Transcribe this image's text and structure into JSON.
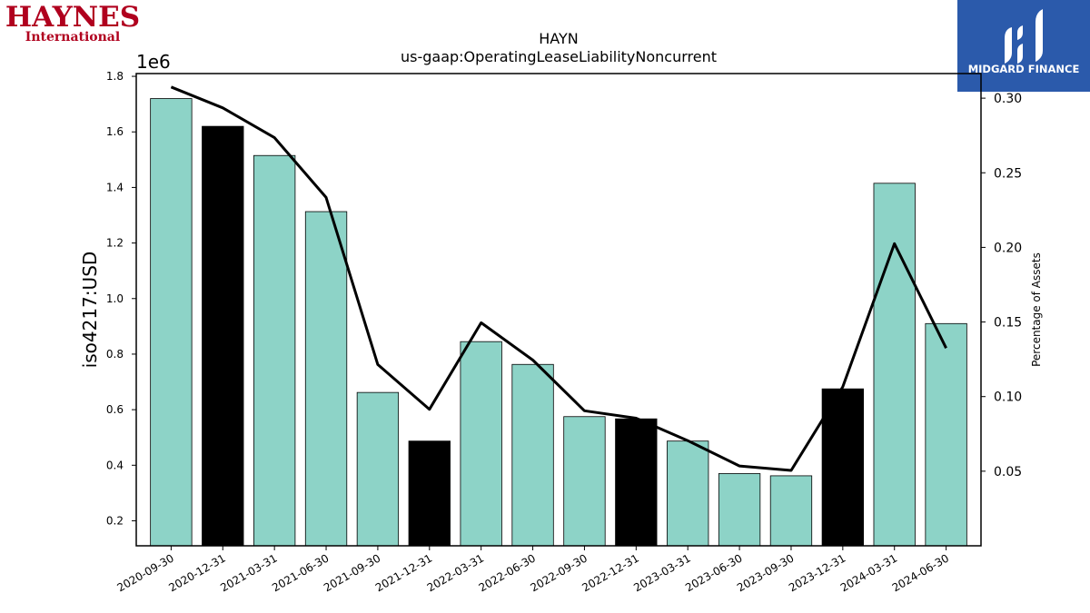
{
  "branding": {
    "left_logo_line1": "HAYNES",
    "left_logo_line2": "International",
    "left_logo_color": "#b0001e",
    "right_logo_text": "MIDGARD FINANCE",
    "right_logo_bg": "#2b5aab"
  },
  "chart_data": {
    "type": "bar",
    "title": "HAYN",
    "subtitle": "us-gaap:OperatingLeaseLiabilityNoncurrent",
    "ylabel": "iso4217:USD",
    "y_offset_text": "1e6",
    "y2label": "Percentage of Assets",
    "categories": [
      "2020-09-30",
      "2020-12-31",
      "2021-03-31",
      "2021-06-30",
      "2021-09-30",
      "2021-12-31",
      "2022-03-31",
      "2022-06-30",
      "2022-09-30",
      "2022-12-31",
      "2023-03-31",
      "2023-06-30",
      "2023-09-30",
      "2023-12-31",
      "2024-03-31",
      "2024-06-30"
    ],
    "values": [
      1.72,
      1.62,
      1.515,
      1.313,
      0.662,
      0.487,
      0.845,
      0.763,
      0.575,
      0.567,
      0.487,
      0.37,
      0.362,
      0.675,
      1.415,
      0.91
    ],
    "bar_colors": [
      "#8dd3c7",
      "#000000",
      "#8dd3c7",
      "#8dd3c7",
      "#8dd3c7",
      "#000000",
      "#8dd3c7",
      "#8dd3c7",
      "#8dd3c7",
      "#000000",
      "#8dd3c7",
      "#8dd3c7",
      "#8dd3c7",
      "#000000",
      "#8dd3c7",
      "#8dd3c7"
    ],
    "ylim": [
      0.11,
      1.81
    ],
    "yticks": [
      0.2,
      0.4,
      0.6,
      0.8,
      1.0,
      1.2,
      1.4,
      1.6,
      1.8
    ],
    "ytick_labels": [
      "0.2",
      "0.4",
      "0.6",
      "0.8",
      "1.0",
      "1.2",
      "1.4",
      "1.6",
      "1.8"
    ],
    "line_series": {
      "values": [
        0.3075,
        0.2935,
        0.2735,
        0.2335,
        0.1215,
        0.0915,
        0.1495,
        0.1245,
        0.0905,
        0.0855,
        0.0705,
        0.0535,
        0.0505,
        0.1065,
        0.2025,
        0.1325
      ],
      "color": "#000000"
    },
    "y2lim": [
      0.0,
      0.3165
    ],
    "y2ticks": [
      0.05,
      0.1,
      0.15,
      0.2,
      0.25,
      0.3
    ],
    "y2tick_labels": [
      "0.05",
      "0.10",
      "0.15",
      "0.20",
      "0.25",
      "0.30"
    ],
    "grid": false
  }
}
